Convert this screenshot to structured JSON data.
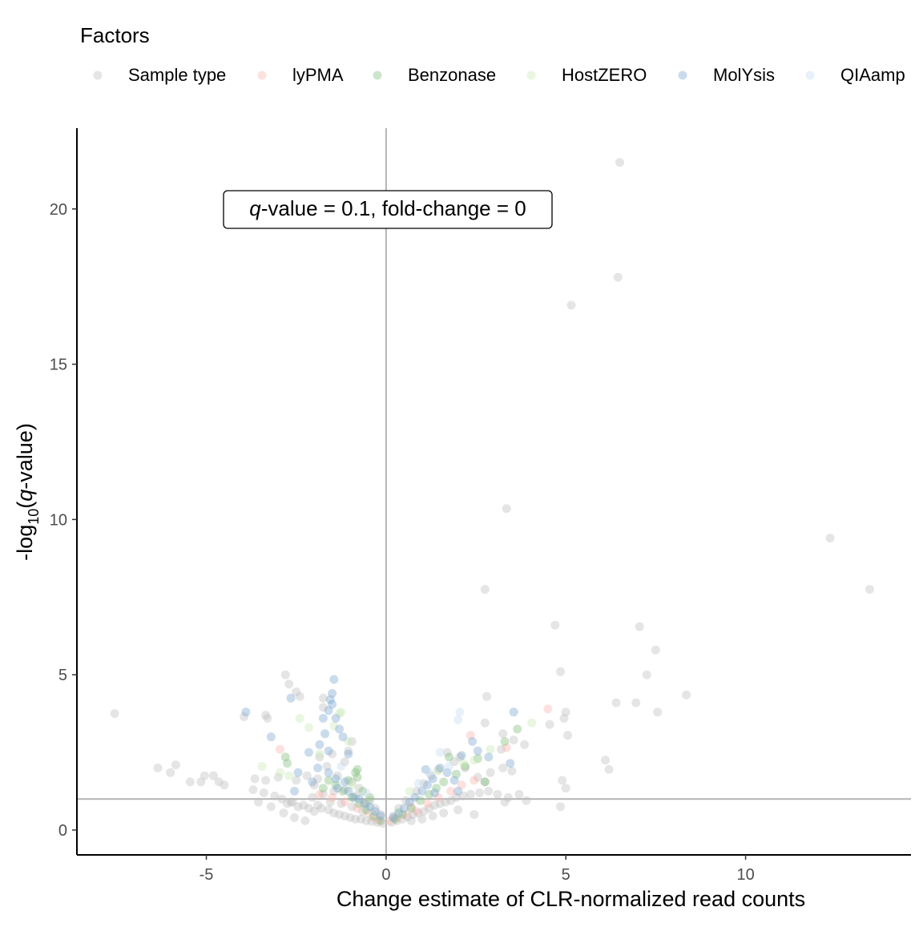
{
  "chart_data": {
    "type": "scatter",
    "title": "",
    "xlabel": "Change estimate of CLR-normalized read counts",
    "ylabel": {
      "pre": "-log",
      "sub": "10",
      "open": "(",
      "italic": "q",
      "post": "-value)"
    },
    "xlim": [
      -8.6,
      14.6
    ],
    "ylim": [
      -0.8,
      22.6
    ],
    "x_ticks": [
      -5,
      0,
      5,
      10
    ],
    "y_ticks": [
      0,
      5,
      10,
      15,
      20
    ],
    "x_tick_labels": [
      "-5",
      "0",
      "5",
      "10"
    ],
    "y_tick_labels": [
      "0",
      "5",
      "10",
      "15",
      "20"
    ],
    "grid": false,
    "reference_lines": {
      "vertical_x": 0,
      "horizontal_y": 1
    },
    "annotation": {
      "italic": "q",
      "rest": "-value = 0.1, fold-change = 0"
    },
    "legend": {
      "title": "Factors",
      "position": "top",
      "entries": [
        "Sample type",
        "lyPMA",
        "Benzonase",
        "HostZERO",
        "MolYsis",
        "QIAamp"
      ]
    },
    "colors": {
      "Sample type": "#bdbdbd",
      "lyPMA": "#fbb4ae",
      "Benzonase": "#7fbf7b",
      "HostZERO": "#c7e9b4",
      "MolYsis": "#7ba6cf",
      "QIAamp": "#c6dbef",
      "reference_line": "#b3b3b3",
      "axis": "#000000"
    },
    "series": [
      {
        "name": "Sample type",
        "points": [
          [
            6.5,
            21.5
          ],
          [
            6.45,
            17.8
          ],
          [
            5.15,
            16.9
          ],
          [
            3.35,
            10.35
          ],
          [
            12.35,
            9.4
          ],
          [
            13.45,
            7.75
          ],
          [
            2.75,
            7.75
          ],
          [
            7.05,
            6.55
          ],
          [
            4.7,
            6.6
          ],
          [
            7.5,
            5.8
          ],
          [
            7.25,
            5.0
          ],
          [
            4.85,
            5.1
          ],
          [
            -2.8,
            5.0
          ],
          [
            -2.7,
            4.7
          ],
          [
            -2.5,
            4.45
          ],
          [
            -2.4,
            4.3
          ],
          [
            8.35,
            4.35
          ],
          [
            6.4,
            4.1
          ],
          [
            6.95,
            4.1
          ],
          [
            2.8,
            4.3
          ],
          [
            5.0,
            3.8
          ],
          [
            7.55,
            3.8
          ],
          [
            -7.55,
            3.75
          ],
          [
            -3.95,
            3.65
          ],
          [
            -3.3,
            3.6
          ],
          [
            -3.35,
            3.7
          ],
          [
            -1.75,
            4.25
          ],
          [
            -1.75,
            3.95
          ],
          [
            4.95,
            3.6
          ],
          [
            4.55,
            3.4
          ],
          [
            5.05,
            3.05
          ],
          [
            2.75,
            3.45
          ],
          [
            3.25,
            3.1
          ],
          [
            3.55,
            2.9
          ],
          [
            3.85,
            2.75
          ],
          [
            3.2,
            2.6
          ],
          [
            6.1,
            2.25
          ],
          [
            6.2,
            1.95
          ],
          [
            -6.35,
            2.0
          ],
          [
            -6.0,
            1.85
          ],
          [
            -5.85,
            2.1
          ],
          [
            -5.45,
            1.55
          ],
          [
            -5.15,
            1.55
          ],
          [
            -5.05,
            1.75
          ],
          [
            -4.8,
            1.75
          ],
          [
            -4.65,
            1.55
          ],
          [
            -4.5,
            1.45
          ],
          [
            -3.65,
            1.65
          ],
          [
            -3.35,
            1.6
          ],
          [
            -3.0,
            1.7
          ],
          [
            -2.5,
            1.6
          ],
          [
            -2.2,
            1.75
          ],
          [
            -2.0,
            1.45
          ],
          [
            -1.9,
            1.65
          ],
          [
            -3.7,
            1.3
          ],
          [
            -3.4,
            1.2
          ],
          [
            -3.1,
            1.1
          ],
          [
            -2.9,
            1.0
          ],
          [
            -2.75,
            0.85
          ],
          [
            -2.6,
            0.9
          ],
          [
            -2.45,
            0.75
          ],
          [
            -2.3,
            0.8
          ],
          [
            -2.15,
            0.7
          ],
          [
            -2.0,
            0.6
          ],
          [
            -1.8,
            0.7
          ],
          [
            -1.6,
            0.65
          ],
          [
            -1.45,
            0.55
          ],
          [
            -1.3,
            0.5
          ],
          [
            -1.15,
            0.45
          ],
          [
            -1.0,
            0.4
          ],
          [
            -0.85,
            0.35
          ],
          [
            -0.7,
            0.35
          ],
          [
            -0.55,
            0.3
          ],
          [
            -0.4,
            0.28
          ],
          [
            -0.25,
            0.25
          ],
          [
            -0.1,
            0.22
          ],
          [
            -3.55,
            0.9
          ],
          [
            -3.2,
            0.75
          ],
          [
            -2.85,
            0.55
          ],
          [
            -2.55,
            0.4
          ],
          [
            -2.25,
            0.3
          ],
          [
            -1.9,
            0.8
          ],
          [
            -1.55,
            0.9
          ],
          [
            -1.25,
            0.85
          ],
          [
            -0.95,
            0.75
          ],
          [
            -0.65,
            0.6
          ],
          [
            -2.05,
            1.05
          ],
          [
            -1.75,
            1.15
          ],
          [
            -1.45,
            1.25
          ],
          [
            -1.15,
            1.3
          ],
          [
            -0.85,
            1.1
          ],
          [
            -0.55,
            0.85
          ],
          [
            0.15,
            0.25
          ],
          [
            0.3,
            0.3
          ],
          [
            0.45,
            0.35
          ],
          [
            0.6,
            0.42
          ],
          [
            0.75,
            0.5
          ],
          [
            0.9,
            0.55
          ],
          [
            1.05,
            0.6
          ],
          [
            1.2,
            0.7
          ],
          [
            1.35,
            0.8
          ],
          [
            1.5,
            0.85
          ],
          [
            1.65,
            0.9
          ],
          [
            1.8,
            0.95
          ],
          [
            1.95,
            1.05
          ],
          [
            2.15,
            1.1
          ],
          [
            2.35,
            1.15
          ],
          [
            2.6,
            1.2
          ],
          [
            2.85,
            1.25
          ],
          [
            3.1,
            1.15
          ],
          [
            3.4,
            1.05
          ],
          [
            3.7,
            1.15
          ],
          [
            3.9,
            0.95
          ],
          [
            3.3,
            0.9
          ],
          [
            4.9,
            1.6
          ],
          [
            5.0,
            1.35
          ],
          [
            4.85,
            0.75
          ],
          [
            2.45,
            0.5
          ],
          [
            2.0,
            0.65
          ],
          [
            1.6,
            0.55
          ],
          [
            1.3,
            0.45
          ],
          [
            1.0,
            0.35
          ],
          [
            0.7,
            0.3
          ],
          [
            2.55,
            1.7
          ],
          [
            2.9,
            1.85
          ],
          [
            3.25,
            2.0
          ],
          [
            3.5,
            1.9
          ],
          [
            2.75,
            1.55
          ],
          [
            2.2,
            2.0
          ],
          [
            1.9,
            2.2
          ],
          [
            1.7,
            2.5
          ],
          [
            2.05,
            2.35
          ],
          [
            1.45,
            1.95
          ],
          [
            1.25,
            1.75
          ],
          [
            1.05,
            1.5
          ],
          [
            0.85,
            1.25
          ],
          [
            0.55,
            0.95
          ],
          [
            0.35,
            0.7
          ],
          [
            0.2,
            0.45
          ],
          [
            -2.65,
            0.9
          ],
          [
            -0.95,
            1.55
          ],
          [
            -0.75,
            1.35
          ],
          [
            -1.35,
            1.75
          ],
          [
            -0.45,
            0.95
          ],
          [
            -0.3,
            0.7
          ],
          [
            -0.15,
            0.5
          ],
          [
            -1.65,
            2.05
          ],
          [
            -1.85,
            2.35
          ],
          [
            -1.5,
            2.45
          ],
          [
            -1.15,
            2.2
          ],
          [
            -0.95,
            2.85
          ],
          [
            -1.05,
            2.55
          ]
        ]
      },
      {
        "name": "lyPMA",
        "points": [
          [
            4.5,
            3.9
          ],
          [
            2.35,
            3.05
          ],
          [
            3.35,
            2.65
          ],
          [
            -2.95,
            2.6
          ],
          [
            -0.5,
            0.55
          ],
          [
            -0.35,
            0.4
          ],
          [
            -0.2,
            0.32
          ],
          [
            0.1,
            0.3
          ],
          [
            0.3,
            0.4
          ],
          [
            0.55,
            0.5
          ],
          [
            0.85,
            0.6
          ],
          [
            1.15,
            0.85
          ],
          [
            1.45,
            1.05
          ],
          [
            -0.8,
            0.7
          ],
          [
            -1.15,
            0.9
          ],
          [
            -1.5,
            1.05
          ],
          [
            -1.85,
            1.15
          ],
          [
            1.8,
            1.25
          ],
          [
            2.1,
            1.45
          ],
          [
            2.45,
            1.6
          ],
          [
            -0.6,
            0.85
          ],
          [
            0.7,
            0.75
          ]
        ]
      },
      {
        "name": "Benzonase",
        "points": [
          [
            -0.8,
            1.95
          ],
          [
            -0.85,
            1.85
          ],
          [
            -0.8,
            1.7
          ],
          [
            -1.05,
            1.6
          ],
          [
            -2.8,
            2.35
          ],
          [
            -2.75,
            2.15
          ],
          [
            3.3,
            2.85
          ],
          [
            3.65,
            3.25
          ],
          [
            2.55,
            2.3
          ],
          [
            2.75,
            1.55
          ],
          [
            1.95,
            1.8
          ],
          [
            1.6,
            1.55
          ],
          [
            1.4,
            1.35
          ],
          [
            1.2,
            1.15
          ],
          [
            0.95,
            0.95
          ],
          [
            0.7,
            0.7
          ],
          [
            0.45,
            0.5
          ],
          [
            0.25,
            0.35
          ],
          [
            -0.15,
            0.3
          ],
          [
            -0.35,
            0.45
          ],
          [
            -0.55,
            0.65
          ],
          [
            -0.75,
            0.85
          ],
          [
            -0.95,
            1.05
          ],
          [
            -1.2,
            1.25
          ],
          [
            -1.4,
            1.45
          ],
          [
            -1.6,
            1.6
          ],
          [
            -1.75,
            1.35
          ],
          [
            -0.65,
            1.25
          ],
          [
            -0.45,
            1.05
          ],
          [
            2.2,
            2.05
          ],
          [
            1.75,
            2.35
          ]
        ]
      },
      {
        "name": "HostZERO",
        "points": [
          [
            -1.25,
            3.8
          ],
          [
            -1.3,
            3.75
          ],
          [
            -2.15,
            3.3
          ],
          [
            -2.4,
            3.6
          ],
          [
            -1.45,
            3.35
          ],
          [
            -1.05,
            2.85
          ],
          [
            4.05,
            3.45
          ],
          [
            2.9,
            2.6
          ],
          [
            2.45,
            2.25
          ],
          [
            -3.45,
            2.05
          ],
          [
            -2.95,
            1.85
          ],
          [
            -2.7,
            1.75
          ],
          [
            -0.95,
            1.45
          ],
          [
            0.65,
            1.25
          ],
          [
            1.45,
            1.9
          ],
          [
            2.15,
            2.15
          ],
          [
            -1.85,
            2.45
          ],
          [
            -0.55,
            0.85
          ],
          [
            0.35,
            0.6
          ]
        ]
      },
      {
        "name": "MolYsis",
        "points": [
          [
            -1.45,
            4.85
          ],
          [
            -1.5,
            4.4
          ],
          [
            -1.55,
            4.2
          ],
          [
            -1.5,
            4.05
          ],
          [
            -1.6,
            3.85
          ],
          [
            -1.4,
            3.6
          ],
          [
            -1.75,
            3.6
          ],
          [
            -1.3,
            3.25
          ],
          [
            -1.2,
            3.0
          ],
          [
            -1.7,
            3.1
          ],
          [
            -2.65,
            4.25
          ],
          [
            -3.9,
            3.8
          ],
          [
            -3.2,
            3.0
          ],
          [
            -2.15,
            2.5
          ],
          [
            -1.6,
            2.55
          ],
          [
            -1.05,
            2.45
          ],
          [
            -1.85,
            2.75
          ],
          [
            -2.45,
            1.85
          ],
          [
            -1.9,
            2.0
          ],
          [
            -1.6,
            1.85
          ],
          [
            -1.4,
            1.65
          ],
          [
            -1.15,
            1.55
          ],
          [
            -1.35,
            1.35
          ],
          [
            -1.05,
            1.25
          ],
          [
            -0.9,
            1.05
          ],
          [
            -0.75,
            1.0
          ],
          [
            -0.6,
            0.85
          ],
          [
            -0.45,
            0.75
          ],
          [
            -0.3,
            0.6
          ],
          [
            -0.15,
            0.45
          ],
          [
            3.55,
            3.8
          ],
          [
            2.4,
            2.85
          ],
          [
            2.1,
            2.4
          ],
          [
            2.55,
            2.55
          ],
          [
            1.5,
            2.0
          ],
          [
            1.7,
            1.85
          ],
          [
            1.3,
            1.65
          ],
          [
            1.15,
            1.45
          ],
          [
            1.35,
            1.2
          ],
          [
            1.0,
            1.25
          ],
          [
            0.8,
            1.05
          ],
          [
            0.65,
            0.9
          ],
          [
            0.5,
            0.7
          ],
          [
            0.35,
            0.55
          ],
          [
            0.2,
            0.4
          ],
          [
            2.85,
            2.35
          ],
          [
            3.45,
            2.15
          ],
          [
            1.1,
            1.95
          ],
          [
            1.9,
            1.6
          ],
          [
            2.0,
            1.25
          ],
          [
            -2.55,
            1.25
          ],
          [
            -2.05,
            1.55
          ]
        ]
      },
      {
        "name": "QIAamp",
        "points": [
          [
            2.05,
            3.8
          ],
          [
            1.5,
            2.5
          ],
          [
            2.0,
            3.55
          ],
          [
            1.75,
            2.05
          ],
          [
            1.2,
            1.85
          ],
          [
            0.9,
            1.5
          ],
          [
            -0.55,
            1.2
          ],
          [
            -1.25,
            2.05
          ]
        ]
      }
    ]
  }
}
